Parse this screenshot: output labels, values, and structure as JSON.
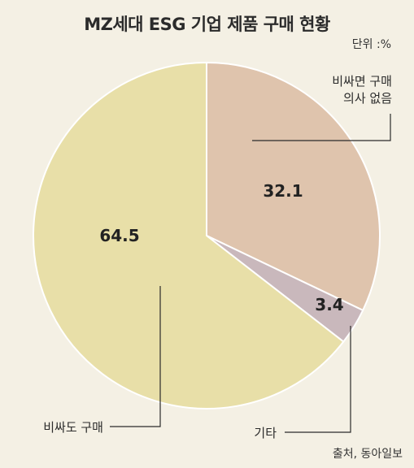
{
  "chart_data": {
    "type": "pie",
    "title": "MZ세대 ESG 기업 제품 구매 현황",
    "unit": "단위 :%",
    "source": "출처, 동아일보",
    "slices": [
      {
        "label_lines": [
          "비싸면 구매",
          "의사 없음"
        ],
        "value": 32.1,
        "display": "32.1",
        "color": "#dfc4ad"
      },
      {
        "label_lines": [
          "기타"
        ],
        "value": 3.4,
        "display": "3.4",
        "color": "#c9b8bc"
      },
      {
        "label_lines": [
          "비싸도 구매"
        ],
        "value": 64.5,
        "display": "64.5",
        "color": "#e8dfa8"
      }
    ]
  }
}
